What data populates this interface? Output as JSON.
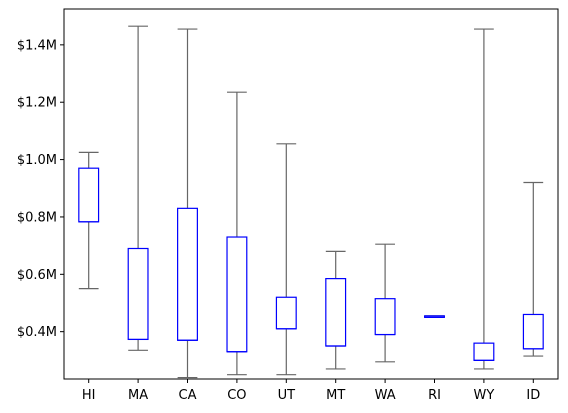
{
  "chart_data": {
    "type": "box",
    "categories": [
      "HI",
      "MA",
      "CA",
      "CO",
      "UT",
      "MT",
      "WA",
      "RI",
      "WY",
      "ID"
    ],
    "boxes": [
      {
        "category": "HI",
        "whisker_low": 550000,
        "q1": 783000,
        "median": 783000,
        "q3": 970000,
        "whisker_high": 1025000
      },
      {
        "category": "MA",
        "whisker_low": 335000,
        "q1": 373000,
        "median": 373000,
        "q3": 690000,
        "whisker_high": 1465000
      },
      {
        "category": "CA",
        "whisker_low": 240000,
        "q1": 370000,
        "median": 370000,
        "q3": 830000,
        "whisker_high": 1455000
      },
      {
        "category": "CO",
        "whisker_low": 250000,
        "q1": 330000,
        "median": 330000,
        "q3": 730000,
        "whisker_high": 1235000
      },
      {
        "category": "UT",
        "whisker_low": 250000,
        "q1": 410000,
        "median": 410000,
        "q3": 520000,
        "whisker_high": 1055000
      },
      {
        "category": "MT",
        "whisker_low": 270000,
        "q1": 350000,
        "median": 350000,
        "q3": 585000,
        "whisker_high": 680000
      },
      {
        "category": "WA",
        "whisker_low": 295000,
        "q1": 390000,
        "median": 390000,
        "q3": 515000,
        "whisker_high": 705000
      },
      {
        "category": "RI",
        "whisker_low": 450000,
        "q1": 450000,
        "median": 450000,
        "q3": 455000,
        "whisker_high": 455000
      },
      {
        "category": "WY",
        "whisker_low": 270000,
        "q1": 300000,
        "median": 300000,
        "q3": 360000,
        "whisker_high": 1455000
      },
      {
        "category": "ID",
        "whisker_low": 315000,
        "q1": 340000,
        "median": 340000,
        "q3": 460000,
        "whisker_high": 920000
      }
    ],
    "y_ticks": [
      {
        "value": 400000,
        "label": "$0.4M"
      },
      {
        "value": 600000,
        "label": "$0.6M"
      },
      {
        "value": 800000,
        "label": "$0.8M"
      },
      {
        "value": 1000000,
        "label": "$1.0M"
      },
      {
        "value": 1200000,
        "label": "$1.2M"
      },
      {
        "value": 1400000,
        "label": "$1.4M"
      }
    ],
    "ylim": [
      235000,
      1525000
    ],
    "title": "",
    "xlabel": "",
    "ylabel": "",
    "grid": false,
    "colors": {
      "box": "#0000ff",
      "whisker": "#666666",
      "axis": "#000000"
    }
  }
}
